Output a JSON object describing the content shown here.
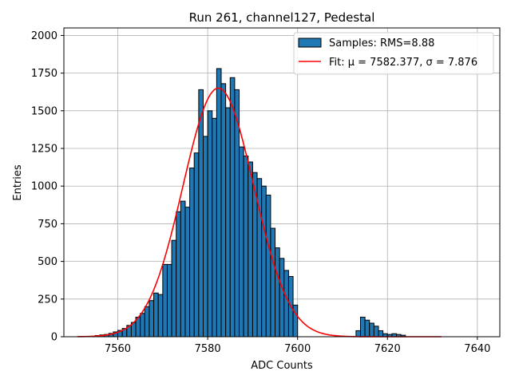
{
  "chart_data": {
    "type": "histogram",
    "title": "Run 261, channel127, Pedestal",
    "xlabel": "ADC Counts",
    "ylabel": "Entries",
    "xlim": [
      7548,
      7645
    ],
    "ylim": [
      0,
      2050
    ],
    "xticks": [
      7560,
      7580,
      7600,
      7620,
      7640
    ],
    "yticks": [
      0,
      250,
      500,
      750,
      1000,
      1250,
      1500,
      1750,
      2000
    ],
    "grid": true,
    "legend_position": "top-right",
    "bin_width": 1,
    "bins_start": [
      7555,
      7556,
      7557,
      7558,
      7559,
      7560,
      7561,
      7562,
      7563,
      7564,
      7565,
      7566,
      7567,
      7568,
      7569,
      7570,
      7571,
      7572,
      7573,
      7574,
      7575,
      7576,
      7577,
      7578,
      7579,
      7580,
      7581,
      7582,
      7583,
      7584,
      7585,
      7586,
      7587,
      7588,
      7589,
      7590,
      7591,
      7592,
      7593,
      7594,
      7595,
      7596,
      7597,
      7598,
      7599,
      7613,
      7614,
      7615,
      7616,
      7617,
      7618,
      7619,
      7620,
      7621,
      7622,
      7623
    ],
    "counts": [
      8,
      12,
      15,
      22,
      32,
      42,
      55,
      75,
      95,
      130,
      155,
      200,
      240,
      290,
      280,
      480,
      480,
      640,
      830,
      900,
      860,
      1120,
      1220,
      1640,
      1330,
      1500,
      1450,
      1780,
      1680,
      1520,
      1720,
      1640,
      1260,
      1200,
      1160,
      1090,
      1050,
      1000,
      940,
      720,
      590,
      520,
      440,
      400,
      210,
      40,
      130,
      110,
      90,
      70,
      40,
      20,
      15,
      20,
      15,
      10
    ],
    "series": [
      {
        "name": "Samples: RMS=8.88",
        "kind": "histogram",
        "color": "#1f77b4",
        "edge_color": "#000000"
      },
      {
        "name": "Fit: μ = 7582.377, σ = 7.876",
        "kind": "gaussian-fit",
        "color": "#ff0000",
        "mu": 7582.377,
        "sigma": 7.876,
        "amplitude": 1650,
        "x_range": [
          7551,
          7632
        ]
      }
    ]
  }
}
